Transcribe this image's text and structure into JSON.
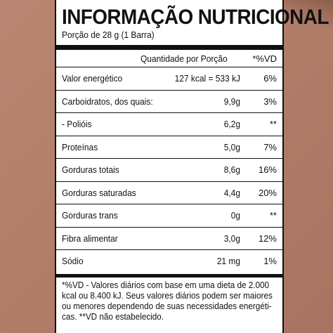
{
  "panel": {
    "title": "INFORMAÇÃO NUTRICIONAL",
    "serving": "Porção de 28 g (1 Barra)",
    "columns": {
      "quantity": "Quantidade por Porção",
      "daily_value": "*%VD"
    },
    "rows": [
      {
        "name": "Valor energético",
        "amount": "127 kcal = 533 kJ",
        "pct": "6%"
      },
      {
        "name": "Carboidratos, dos quais:",
        "amount": "9,9g",
        "pct": "3%"
      },
      {
        "name": "- Polióis",
        "amount": "6,2g",
        "pct": "**"
      },
      {
        "name": "Proteínas",
        "amount": "5,0g",
        "pct": "7%"
      },
      {
        "name": "Gorduras totais",
        "amount": "8,6g",
        "pct": "16%"
      },
      {
        "name": "Gorduras saturadas",
        "amount": "4,4g",
        "pct": "20%"
      },
      {
        "name": "Gorduras trans",
        "amount": "0g",
        "pct": "**"
      },
      {
        "name": "Fibra alimentar",
        "amount": "3,0g",
        "pct": "12%"
      },
      {
        "name": "Sódio",
        "amount": "21 mg",
        "pct": "1%"
      }
    ],
    "footnote_lines": [
      "*%VD - Valores diários com base em uma dieta de 2.000",
      "kcal ou 8.400 kJ. Seus valores diários podem ser maiores",
      "ou menores dependendo de suas necessidades energéti-",
      "cas. **VD não estabelecido."
    ]
  }
}
